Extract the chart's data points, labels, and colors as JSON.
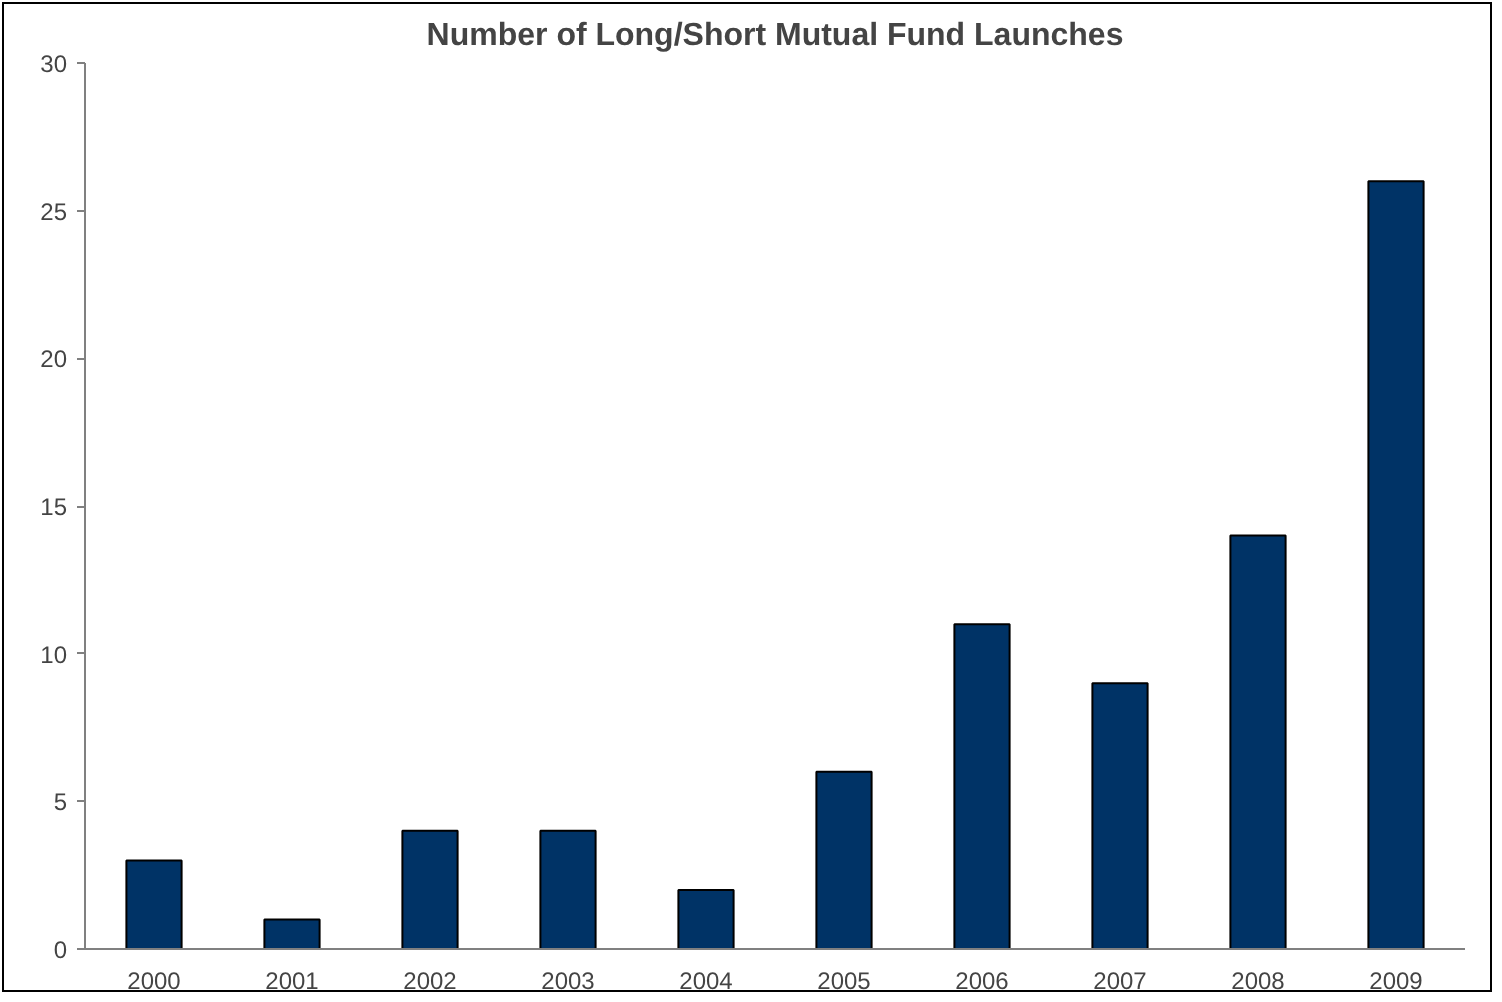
{
  "chart_data": {
    "type": "bar",
    "title": "Number of Long/Short Mutual Fund Launches",
    "categories": [
      "2000",
      "2001",
      "2002",
      "2003",
      "2004",
      "2005",
      "2006",
      "2007",
      "2008",
      "2009"
    ],
    "values": [
      3,
      1,
      4,
      4,
      2,
      6,
      11,
      9,
      14,
      26
    ],
    "color": "#003366",
    "ylim": [
      0,
      30
    ],
    "yticks": [
      0,
      5,
      10,
      15,
      20,
      25,
      30
    ],
    "grid": false
  }
}
